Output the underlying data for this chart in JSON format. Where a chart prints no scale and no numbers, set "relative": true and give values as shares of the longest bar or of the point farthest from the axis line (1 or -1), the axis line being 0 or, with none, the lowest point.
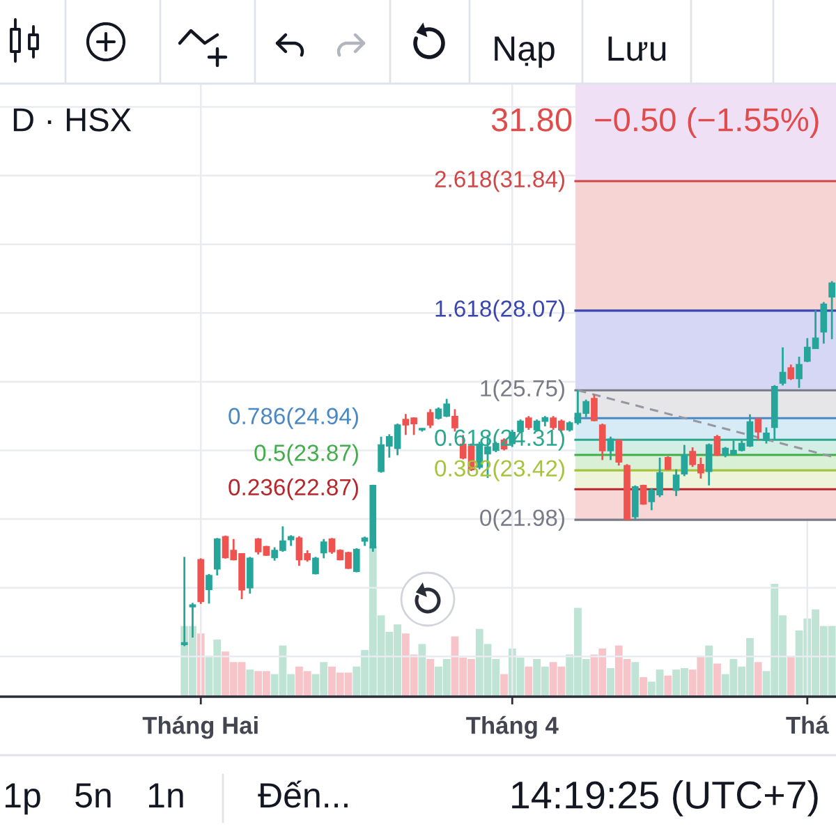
{
  "chart_data": [
    {
      "type": "candlestick",
      "title": "D · HSX",
      "categories": [
        null,
        null,
        null,
        null,
        null,
        null,
        null,
        null,
        null,
        null,
        null,
        null,
        null,
        null,
        null,
        null,
        null,
        null,
        null,
        null,
        null,
        null,
        null,
        null,
        "Tháng Hai",
        null,
        null,
        null,
        null,
        null,
        null,
        null,
        null,
        null,
        null,
        null,
        null,
        null,
        null,
        null,
        null,
        null,
        null,
        null,
        null,
        null,
        null,
        null,
        null,
        null,
        null,
        null,
        null,
        null,
        null,
        null,
        null,
        null,
        null,
        null,
        null,
        null,
        "Tháng 4",
        null,
        null,
        null,
        null,
        null,
        null,
        null,
        null,
        null,
        null,
        null,
        null,
        null,
        null,
        null,
        null,
        null,
        null,
        null,
        null,
        null,
        null,
        null,
        null,
        null,
        null,
        null,
        null,
        null,
        null,
        null,
        null,
        null,
        null,
        null,
        "Thá",
        null,
        null,
        null
      ],
      "ohlc": [
        null,
        null,
        null,
        null,
        null,
        null,
        null,
        null,
        null,
        null,
        null,
        null,
        null,
        null,
        null,
        null,
        null,
        null,
        null,
        null,
        null,
        null,
        [
          18.35,
          20.9,
          18.3,
          18.4
        ],
        [
          19.45,
          19.56,
          18.55,
          19.5
        ],
        [
          20.82,
          20.86,
          19.53,
          19.6
        ],
        [
          19.95,
          20.4,
          19.54,
          20.36
        ],
        [
          20.55,
          21.45,
          20.36,
          21.42
        ],
        [
          21.49,
          21.52,
          20.85,
          20.88
        ],
        [
          21.09,
          21.42,
          20.8,
          20.82
        ],
        [
          20.99,
          21.0,
          19.67,
          19.94
        ],
        [
          20.0,
          20.9,
          19.83,
          20.86
        ],
        [
          21.42,
          21.45,
          20.97,
          21.05
        ],
        [
          21.2,
          21.22,
          20.93,
          20.95
        ],
        [
          20.88,
          21.18,
          20.79,
          21.09
        ],
        [
          21.09,
          21.79,
          21.05,
          21.36
        ],
        [
          21.4,
          21.53,
          21.22,
          21.49
        ],
        [
          21.45,
          21.5,
          20.64,
          20.82
        ],
        [
          20.99,
          21.09,
          20.76,
          20.82
        ],
        [
          20.41,
          20.9,
          20.39,
          20.86
        ],
        [
          21.02,
          21.42,
          20.86,
          21.33
        ],
        [
          21.42,
          21.45,
          20.99,
          21.05
        ],
        [
          21.09,
          21.12,
          20.8,
          20.82
        ],
        [
          21.02,
          21.05,
          20.55,
          20.57
        ],
        [
          20.48,
          21.15,
          20.45,
          21.12
        ],
        [
          21.36,
          21.49,
          21.22,
          21.45
        ],
        [
          21.16,
          23.0,
          21.05,
          22.98
        ],
        [
          23.39,
          24.4,
          23.35,
          24.16
        ],
        [
          24.13,
          24.47,
          23.79,
          24.4
        ],
        [
          24.06,
          24.78,
          23.86,
          24.74
        ],
        [
          24.9,
          25.06,
          24.45,
          24.74
        ],
        [
          24.94,
          24.96,
          24.45,
          24.78
        ],
        [
          24.6,
          24.65,
          24.55,
          24.64
        ],
        [
          25.1,
          25.2,
          24.65,
          24.74
        ],
        [
          24.94,
          25.25,
          24.9,
          25.2
        ],
        [
          25.0,
          25.5,
          24.97,
          25.35
        ],
        [
          24.99,
          25.2,
          24.55,
          24.66
        ],
        [
          24.18,
          24.45,
          23.74,
          23.78
        ],
        [
          24.12,
          24.2,
          23.4,
          23.44
        ],
        [
          23.51,
          24.25,
          23.45,
          24.18
        ],
        [
          23.9,
          24.45,
          23.2,
          24.1
        ],
        [
          24.0,
          24.25,
          23.95,
          24.2
        ],
        [
          24.3,
          24.35,
          24.0,
          24.05
        ],
        [
          24.2,
          24.6,
          24.1,
          24.52
        ],
        [
          24.55,
          24.9,
          24.5,
          24.85
        ],
        [
          24.94,
          25.0,
          24.6,
          24.67
        ],
        [
          24.6,
          24.9,
          24.55,
          24.85
        ],
        [
          24.85,
          25.0,
          24.7,
          24.95
        ],
        [
          24.94,
          25.0,
          24.6,
          24.67
        ],
        [
          24.85,
          24.9,
          24.55,
          24.6
        ],
        [
          24.6,
          24.85,
          24.55,
          24.8
        ],
        [
          24.81,
          25.75,
          24.75,
          25.08
        ],
        [
          25.08,
          25.48,
          24.97,
          25.42
        ],
        [
          25.51,
          25.62,
          24.85,
          24.87
        ],
        [
          24.74,
          24.78,
          23.72,
          23.99
        ],
        [
          23.99,
          24.4,
          23.72,
          24.33
        ],
        [
          24.29,
          24.33,
          23.56,
          23.66
        ],
        [
          23.56,
          23.6,
          21.98,
          21.99
        ],
        [
          22.07,
          22.98,
          21.99,
          22.94
        ],
        [
          22.98,
          23.0,
          22.42,
          22.44
        ],
        [
          22.51,
          22.9,
          22.26,
          22.84
        ],
        [
          22.71,
          23.79,
          22.64,
          23.35
        ],
        [
          23.79,
          23.83,
          23.43,
          23.45
        ],
        [
          22.84,
          23.45,
          22.67,
          23.28
        ],
        [
          23.32,
          24.16,
          23.25,
          23.86
        ],
        [
          23.97,
          24.09,
          23.52,
          23.59
        ],
        [
          23.59,
          23.79,
          23.18,
          23.35
        ],
        [
          23.39,
          24.2,
          22.98,
          24.16
        ],
        [
          24.4,
          24.45,
          23.84,
          23.86
        ],
        [
          23.86,
          24.1,
          23.8,
          24.06
        ],
        [
          23.9,
          24.29,
          23.86,
          24.0
        ],
        [
          24.0,
          24.29,
          23.97,
          24.2
        ],
        [
          24.13,
          25.05,
          24.1,
          24.83
        ],
        [
          24.91,
          24.95,
          24.29,
          24.54
        ],
        [
          24.29,
          24.67,
          24.2,
          24.5
        ],
        [
          24.67,
          25.9,
          24.33,
          25.86
        ],
        [
          25.96,
          27.0,
          25.89,
          26.27
        ],
        [
          26.4,
          26.5,
          26.05,
          26.09
        ],
        [
          26.09,
          26.73,
          25.82,
          26.5
        ],
        [
          26.6,
          27.27,
          26.57,
          27.0
        ],
        [
          26.97,
          28.08,
          26.97,
          27.27
        ],
        [
          27.45,
          28.32,
          27.11,
          28.26
        ],
        [
          28.47,
          28.93,
          27.24,
          28.87
        ]
      ],
      "colors": [
        null,
        null,
        null,
        null,
        null,
        null,
        null,
        null,
        null,
        null,
        null,
        null,
        null,
        null,
        null,
        null,
        null,
        null,
        null,
        null,
        null,
        null,
        "#26a69a",
        "#26a69a",
        "#ef5350",
        "#26a69a",
        "#26a69a",
        "#ef5350",
        "#ef5350",
        "#ef5350",
        "#26a69a",
        "#ef5350",
        "#ef5350",
        "#26a69a",
        "#26a69a",
        "#26a69a",
        "#ef5350",
        "#ef5350",
        "#26a69a",
        "#26a69a",
        "#ef5350",
        "#ef5350",
        "#ef5350",
        "#26a69a",
        "#26a69a",
        "#26a69a",
        "#26a69a",
        "#26a69a",
        "#26a69a",
        "#ef5350",
        "#ef5350",
        "#26a69a",
        "#ef5350",
        "#26a69a",
        "#26a69a",
        "#ef5350",
        "#ef5350",
        "#ef5350",
        "#26a69a",
        "#26a69a",
        "#26a69a",
        "#ef5350",
        "#26a69a",
        "#26a69a",
        "#ef5350",
        "#26a69a",
        "#26a69a",
        "#ef5350",
        "#ef5350",
        "#26a69a",
        "#26a69a",
        "#26a69a",
        "#ef5350",
        "#ef5350",
        "#26a69a",
        "#ef5350",
        "#ef5350",
        "#26a69a",
        "#ef5350",
        "#26a69a",
        "#26a69a",
        "#ef5350",
        "#26a69a",
        "#26a69a",
        "#ef5350",
        "#ef5350",
        "#26a69a",
        "#ef5350",
        "#26a69a",
        "#26a69a",
        "#26a69a",
        "#26a69a",
        "#ef5350",
        "#26a69a",
        "#26a69a",
        "#26a69a",
        "#ef5350",
        "#26a69a",
        "#26a69a",
        "#26a69a",
        "#26a69a",
        "#26a69a"
      ],
      "series": [
        {
          "type": "line",
          "color": "#9598a1",
          "line_style": "dashed",
          "values": [
            null,
            null,
            null,
            null,
            null,
            null,
            null,
            null,
            null,
            null,
            null,
            null,
            null,
            null,
            null,
            null,
            null,
            null,
            null,
            null,
            null,
            null,
            null,
            null,
            null,
            null,
            null,
            null,
            null,
            null,
            null,
            null,
            null,
            null,
            null,
            null,
            null,
            null,
            null,
            null,
            null,
            null,
            null,
            null,
            null,
            null,
            null,
            null,
            null,
            null,
            null,
            null,
            null,
            null,
            null,
            null,
            null,
            null,
            null,
            null,
            null,
            null,
            null,
            null,
            null,
            null,
            null,
            null,
            null,
            null,
            25.75,
            null,
            null,
            null,
            null,
            null,
            null,
            null,
            null,
            null,
            null,
            null,
            null,
            null,
            null,
            null,
            null,
            null,
            null,
            null,
            null,
            null,
            null,
            null,
            null,
            null,
            null,
            null,
            null,
            null,
            null,
            23.82
          ]
        }
      ],
      "ylim": [
        16.83,
        34.68
      ],
      "yticks": [
        {
          "value": 18,
          "label": null
        },
        {
          "value": 20,
          "label": null
        },
        {
          "value": 22,
          "label": null
        },
        {
          "value": 24,
          "label": null
        },
        {
          "value": 26,
          "label": null
        },
        {
          "value": 28,
          "label": null
        },
        {
          "value": 30,
          "label": null
        },
        {
          "value": 32,
          "label": null
        },
        {
          "value": 34,
          "label": null
        }
      ],
      "tick_labels": "x",
      "grid": true,
      "ref_lines": [
        {
          "axis": "y",
          "value": 31.84,
          "label": "2.618(31.84)",
          "color": "#d04545"
        },
        {
          "axis": "y",
          "value": 28.07,
          "label": "1.618(28.07)",
          "color": "#3a46b0"
        },
        {
          "axis": "y",
          "value": 25.75,
          "label": "1(25.75)",
          "color": "#787b86"
        },
        {
          "axis": "y",
          "value": 24.94,
          "label": "0.786(24.94)",
          "color": "#4a88c4"
        },
        {
          "axis": "y",
          "value": 24.31,
          "label": "0.618(24.31)",
          "color": "#2aa88f"
        },
        {
          "axis": "y",
          "value": 23.87,
          "label": "0.5(23.87)",
          "color": "#43ad4b"
        },
        {
          "axis": "y",
          "value": 23.42,
          "label": "0.382(23.42)",
          "color": "#a6c43a"
        },
        {
          "axis": "y",
          "value": 22.87,
          "label": "0.236(22.87)",
          "color": "#b8262c"
        },
        {
          "axis": "y",
          "value": 21.98,
          "label": "0(21.98)",
          "color": "#787b86"
        }
      ],
      "bands": [
        {
          "axis": "y",
          "from": 21.98,
          "to": 22.87,
          "color": "#f8d6d6"
        },
        {
          "axis": "y",
          "from": 22.87,
          "to": 23.42,
          "color": "#eef4da"
        },
        {
          "axis": "y",
          "from": 23.42,
          "to": 23.87,
          "color": "#d9f0d6"
        },
        {
          "axis": "y",
          "from": 23.87,
          "to": 24.31,
          "color": "#d3efe5"
        },
        {
          "axis": "y",
          "from": 24.31,
          "to": 24.94,
          "color": "#d7ebf6"
        },
        {
          "axis": "y",
          "from": 24.94,
          "to": 25.75,
          "color": "#e6e6e9"
        },
        {
          "axis": "y",
          "from": 25.75,
          "to": 28.07,
          "color": "#d6d7f5"
        },
        {
          "axis": "y",
          "from": 28.07,
          "to": 31.84,
          "color": "#f6d4d4"
        },
        {
          "axis": "y",
          "from": 31.84,
          "to": 34.68,
          "color": "#efe0f6"
        }
      ],
      "annotations": [
        "31.80",
        "−0.50 (−1.55%)",
        "Nạp",
        "Lưu",
        "1p",
        "5n",
        "1n",
        "Đến...",
        "14:19:25 (UTC+7)"
      ]
    },
    {
      "type": "bar",
      "relative": true,
      "tick_labels": false,
      "categories": [
        null,
        null,
        null,
        null,
        null,
        null,
        null,
        null,
        null,
        null,
        null,
        null,
        null,
        null,
        null,
        null,
        null,
        null,
        null,
        null,
        null,
        null,
        null,
        null,
        null,
        null,
        null,
        null,
        null,
        null,
        null,
        null,
        null,
        null,
        null,
        null,
        null,
        null,
        null,
        null,
        null,
        null,
        null,
        null,
        null,
        null,
        null,
        null,
        null,
        null,
        null,
        null,
        null,
        null,
        null,
        null,
        null,
        null,
        null,
        null,
        null,
        null,
        null,
        null,
        null,
        null,
        null,
        null,
        null,
        null,
        null,
        null,
        null,
        null,
        null,
        null,
        null,
        null,
        null,
        null,
        null,
        null,
        null,
        null,
        null,
        null,
        null,
        null,
        null,
        null,
        null,
        null,
        null,
        null,
        null,
        null,
        null,
        null,
        null,
        null,
        null,
        null
      ],
      "values": [
        null,
        null,
        null,
        null,
        null,
        null,
        null,
        null,
        null,
        null,
        null,
        null,
        null,
        null,
        null,
        null,
        null,
        null,
        null,
        null,
        null,
        null,
        0.47,
        0.47,
        0.42,
        0.27,
        0.38,
        0.3,
        0.23,
        0.23,
        0.18,
        0.17,
        0.17,
        0.15,
        0.34,
        0.15,
        0.2,
        0.17,
        0.15,
        0.23,
        0.2,
        0.16,
        0.16,
        0.2,
        0.31,
        1,
        0.54,
        0.43,
        0.48,
        0.42,
        0.28,
        0.35,
        0.25,
        0.2,
        0.25,
        0.4,
        0.26,
        0.25,
        0.45,
        0.35,
        0.25,
        0.15,
        0.32,
        0.26,
        0.2,
        0.25,
        0.2,
        0.23,
        0.2,
        0.28,
        0.59,
        0.25,
        0.28,
        0.32,
        0.19,
        0.34,
        0.25,
        0.23,
        0.13,
        0.1,
        0.18,
        0.14,
        0.18,
        0.19,
        0.18,
        0.27,
        0.34,
        0.22,
        0.15,
        0.25,
        0.2,
        0.39,
        0.23,
        0.17,
        0.75,
        0.54,
        0.27,
        0.44,
        0.52,
        0.58,
        0.47,
        0.47
      ],
      "colors": [
        null,
        null,
        null,
        null,
        null,
        null,
        null,
        null,
        null,
        null,
        null,
        null,
        null,
        null,
        null,
        null,
        null,
        null,
        null,
        null,
        null,
        null,
        "#bfe4d5",
        "#bfe4d5",
        "#f7c5c9",
        "#bfe4d5",
        "#bfe4d5",
        "#f7c5c9",
        "#f7c5c9",
        "#f7c5c9",
        "#bfe4d5",
        "#f7c5c9",
        "#f7c5c9",
        "#bfe4d5",
        "#bfe4d5",
        "#bfe4d5",
        "#f7c5c9",
        "#f7c5c9",
        "#bfe4d5",
        "#bfe4d5",
        "#f7c5c9",
        "#f7c5c9",
        "#f7c5c9",
        "#bfe4d5",
        "#bfe4d5",
        "#bfe4d5",
        "#bfe4d5",
        "#bfe4d5",
        "#bfe4d5",
        "#f7c5c9",
        "#f7c5c9",
        "#bfe4d5",
        "#f7c5c9",
        "#bfe4d5",
        "#bfe4d5",
        "#f7c5c9",
        "#f7c5c9",
        "#f7c5c9",
        "#bfe4d5",
        "#bfe4d5",
        "#bfe4d5",
        "#f7c5c9",
        "#bfe4d5",
        "#bfe4d5",
        "#f7c5c9",
        "#bfe4d5",
        "#bfe4d5",
        "#f7c5c9",
        "#f7c5c9",
        "#bfe4d5",
        "#bfe4d5",
        "#bfe4d5",
        "#f7c5c9",
        "#f7c5c9",
        "#bfe4d5",
        "#f7c5c9",
        "#f7c5c9",
        "#bfe4d5",
        "#f7c5c9",
        "#bfe4d5",
        "#bfe4d5",
        "#f7c5c9",
        "#bfe4d5",
        "#bfe4d5",
        "#f7c5c9",
        "#f7c5c9",
        "#bfe4d5",
        "#f7c5c9",
        "#bfe4d5",
        "#bfe4d5",
        "#bfe4d5",
        "#bfe4d5",
        "#f7c5c9",
        "#bfe4d5",
        "#bfe4d5",
        "#bfe4d5",
        "#f7c5c9",
        "#bfe4d5",
        "#bfe4d5",
        "#bfe4d5",
        "#bfe4d5",
        "#bfe4d5"
      ]
    }
  ]
}
